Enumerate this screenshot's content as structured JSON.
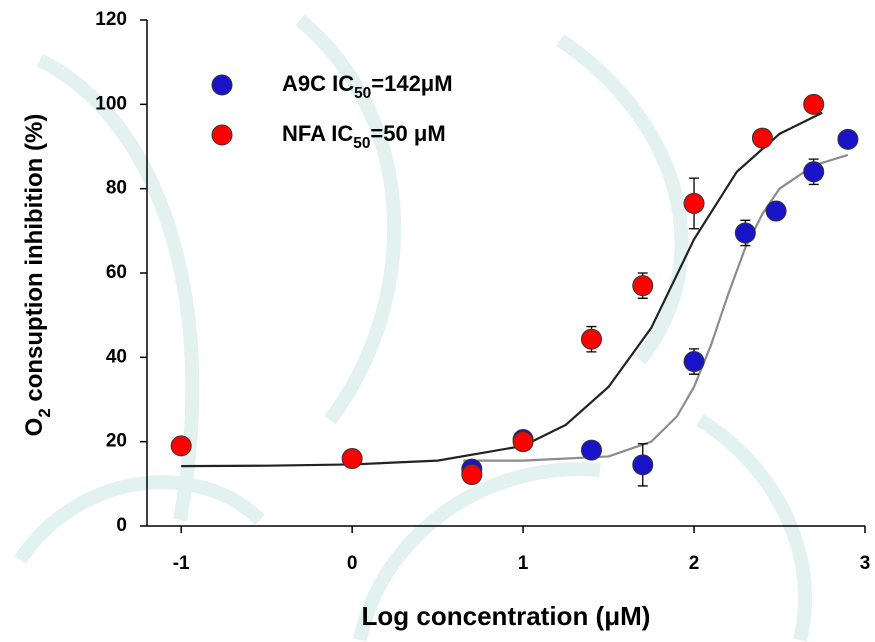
{
  "chart_data": {
    "type": "scatter",
    "x_label": "Log concentration (μM)",
    "y_label": "O2 consuption inhibition (%)",
    "xlim": [
      -1.2,
      3
    ],
    "xticks": [
      -1,
      0,
      1,
      2,
      3
    ],
    "ylim": [
      0,
      120
    ],
    "yticks": [
      0,
      20,
      40,
      60,
      80,
      100,
      120
    ],
    "legend": "upper left",
    "series": [
      {
        "name": "A9C IC50=142μM",
        "color": "#1a14c8",
        "x": [
          0.7,
          1.0,
          1.4,
          1.7,
          2.0,
          2.3,
          2.48,
          2.7,
          2.9
        ],
        "values": [
          13.5,
          20.5,
          18,
          14.5,
          39,
          69.5,
          74.7,
          84,
          91.7
        ],
        "errors": [
          1,
          1,
          1,
          5,
          3,
          3,
          1,
          3,
          1
        ]
      },
      {
        "name": "NFA IC50=50 μM",
        "color": "#ff0000",
        "x": [
          -1,
          0,
          0.7,
          1.0,
          1.4,
          1.7,
          2.0,
          2.4,
          2.7
        ],
        "values": [
          19,
          16,
          12.2,
          20,
          44.3,
          57,
          76.5,
          92,
          100
        ],
        "errors": [
          0.5,
          0.5,
          1.5,
          0.5,
          3,
          3,
          6,
          0.5,
          0.5
        ]
      }
    ],
    "curves": [
      {
        "color": "#222222",
        "x": [
          -1,
          -0.5,
          0,
          0.5,
          1,
          1.25,
          1.5,
          1.75,
          2,
          2.25,
          2.5,
          2.75
        ],
        "values": [
          14.2,
          14.3,
          14.6,
          15.5,
          19,
          24,
          33,
          47,
          68,
          84,
          93,
          98
        ]
      },
      {
        "color": "#8c8c8c",
        "x": [
          0.65,
          1,
          1.5,
          1.75,
          1.9,
          2,
          2.1,
          2.2,
          2.3,
          2.4,
          2.5,
          2.7,
          2.9
        ],
        "values": [
          15.5,
          15.5,
          16.5,
          20,
          26,
          33,
          43,
          55,
          66,
          74,
          80,
          85.5,
          88
        ]
      }
    ]
  }
}
